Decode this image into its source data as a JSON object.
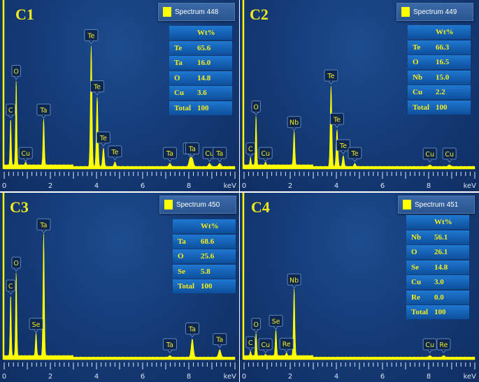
{
  "figure": {
    "panels": [
      {
        "id": "C1",
        "label": "C1",
        "legend": "Spectrum 448",
        "header": "Wt%",
        "rows": [
          [
            "Te",
            "65.6"
          ],
          [
            "Ta",
            "16.0"
          ],
          [
            "O",
            "14.8"
          ],
          [
            "Cu",
            "3.6"
          ],
          [
            "Total",
            "100"
          ]
        ]
      },
      {
        "id": "C2",
        "label": "C2",
        "legend": "Spectrum 449",
        "header": "Wt%",
        "rows": [
          [
            "Te",
            "66.3"
          ],
          [
            "O",
            "16.5"
          ],
          [
            "Nb",
            "15.0"
          ],
          [
            "Cu",
            "2.2"
          ],
          [
            "Total",
            "100"
          ]
        ]
      },
      {
        "id": "C3",
        "label": "C3",
        "legend": "Spectrum 450",
        "header": "Wt%",
        "rows": [
          [
            "Ta",
            "68.6"
          ],
          [
            "O",
            "25.6"
          ],
          [
            "Se",
            "5.8"
          ],
          [
            "Total",
            "100"
          ]
        ]
      },
      {
        "id": "C4",
        "label": "C4",
        "legend": "Spectrum 451",
        "header": "Wt%",
        "rows": [
          [
            "Nb",
            "56.1"
          ],
          [
            "O",
            "26.1"
          ],
          [
            "Se",
            "14.8"
          ],
          [
            "Cu",
            "3.0"
          ],
          [
            "Re",
            "0.0"
          ],
          [
            "Total",
            "100"
          ]
        ]
      }
    ],
    "x_axis": {
      "ticks": [
        "0",
        "2",
        "4",
        "6",
        "8"
      ],
      "unit": "keV"
    },
    "colors": {
      "spectrum": "#ffff00",
      "label_text": "#f3ea1a",
      "background": "#163e7c"
    }
  },
  "chart_data": [
    {
      "type": "line",
      "title": "C1",
      "legend": [
        "Spectrum 448"
      ],
      "xlabel": "keV",
      "ylabel": "",
      "xlim": [
        0,
        10
      ],
      "peaks": [
        {
          "element": "C",
          "x": 0.28,
          "rel_height": 0.3
        },
        {
          "element": "O",
          "x": 0.52,
          "rel_height": 0.55
        },
        {
          "element": "Cu",
          "x": 0.93,
          "rel_height": 0.02
        },
        {
          "element": "Ta",
          "x": 1.71,
          "rel_height": 0.3
        },
        {
          "element": "Te",
          "x": 3.77,
          "rel_height": 0.78
        },
        {
          "element": "Te",
          "x": 4.03,
          "rel_height": 0.45
        },
        {
          "element": "Te",
          "x": 4.3,
          "rel_height": 0.12
        },
        {
          "element": "Te",
          "x": 4.8,
          "rel_height": 0.03
        },
        {
          "element": "Ta",
          "x": 7.18,
          "rel_height": 0.02
        },
        {
          "element": "Cu",
          "x": 8.05,
          "rel_height": 0.05
        },
        {
          "element": "Ta",
          "x": 8.15,
          "rel_height": 0.05
        },
        {
          "element": "Cu",
          "x": 8.9,
          "rel_height": 0.02
        },
        {
          "element": "Ta",
          "x": 9.34,
          "rel_height": 0.02
        }
      ],
      "composition_wt_pct": {
        "Te": 65.6,
        "Ta": 16.0,
        "O": 14.8,
        "Cu": 3.6,
        "Total": 100
      }
    },
    {
      "type": "line",
      "title": "C2",
      "legend": [
        "Spectrum 449"
      ],
      "xlabel": "keV",
      "ylabel": "",
      "xlim": [
        0,
        10
      ],
      "peaks": [
        {
          "element": "C",
          "x": 0.28,
          "rel_height": 0.05
        },
        {
          "element": "O",
          "x": 0.52,
          "rel_height": 0.32
        },
        {
          "element": "Cu",
          "x": 0.93,
          "rel_height": 0.02
        },
        {
          "element": "Nb",
          "x": 2.17,
          "rel_height": 0.22
        },
        {
          "element": "Te",
          "x": 3.77,
          "rel_height": 0.52
        },
        {
          "element": "Te",
          "x": 4.03,
          "rel_height": 0.24
        },
        {
          "element": "Te",
          "x": 4.3,
          "rel_height": 0.07
        },
        {
          "element": "Te",
          "x": 4.8,
          "rel_height": 0.02
        },
        {
          "element": "Cu",
          "x": 8.05,
          "rel_height": 0.01
        },
        {
          "element": "Cu",
          "x": 8.9,
          "rel_height": 0.01
        }
      ],
      "composition_wt_pct": {
        "Te": 66.3,
        "O": 16.5,
        "Nb": 15.0,
        "Cu": 2.2,
        "Total": 100
      }
    },
    {
      "type": "line",
      "title": "C3",
      "legend": [
        "Spectrum 450"
      ],
      "xlabel": "keV",
      "ylabel": "",
      "xlim": [
        0,
        10
      ],
      "peaks": [
        {
          "element": "C",
          "x": 0.28,
          "rel_height": 0.4
        },
        {
          "element": "O",
          "x": 0.52,
          "rel_height": 0.55
        },
        {
          "element": "Se",
          "x": 1.38,
          "rel_height": 0.15
        },
        {
          "element": "Ta",
          "x": 1.71,
          "rel_height": 0.8
        },
        {
          "element": "Ta",
          "x": 7.18,
          "rel_height": 0.01
        },
        {
          "element": "Ta",
          "x": 8.15,
          "rel_height": 0.12
        },
        {
          "element": "Ta",
          "x": 9.34,
          "rel_height": 0.05
        }
      ],
      "composition_wt_pct": {
        "Ta": 68.6,
        "O": 25.6,
        "Se": 5.8,
        "Total": 100
      }
    },
    {
      "type": "line",
      "title": "C4",
      "legend": [
        "Spectrum 451"
      ],
      "xlabel": "keV",
      "ylabel": "",
      "xlim": [
        0,
        10
      ],
      "peaks": [
        {
          "element": "C",
          "x": 0.28,
          "rel_height": 0.03
        },
        {
          "element": "O",
          "x": 0.52,
          "rel_height": 0.15
        },
        {
          "element": "Cu",
          "x": 0.93,
          "rel_height": 0.01
        },
        {
          "element": "Se",
          "x": 1.38,
          "rel_height": 0.17
        },
        {
          "element": "Re",
          "x": 1.84,
          "rel_height": 0.02
        },
        {
          "element": "Nb",
          "x": 2.17,
          "rel_height": 0.44
        },
        {
          "element": "Cu",
          "x": 8.05,
          "rel_height": 0.01
        },
        {
          "element": "Re",
          "x": 8.65,
          "rel_height": 0.01
        }
      ],
      "composition_wt_pct": {
        "Nb": 56.1,
        "O": 26.1,
        "Se": 14.8,
        "Cu": 3.0,
        "Re": 0.0,
        "Total": 100
      }
    }
  ]
}
